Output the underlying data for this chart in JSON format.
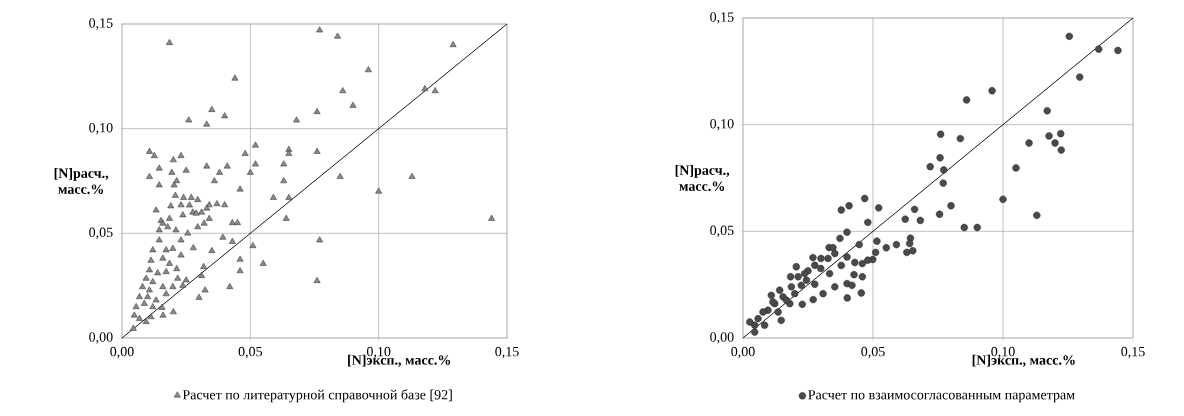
{
  "chart_data": [
    {
      "type": "scatter",
      "xlabel": "[N]эксп., масс.%",
      "ylabel": "[N]расч., масс.%",
      "xlim": [
        0,
        0.15
      ],
      "ylim": [
        0,
        0.15
      ],
      "xticks": [
        {
          "value": 0,
          "label": "0,00"
        },
        {
          "value": 0.05,
          "label": "0,05"
        },
        {
          "value": 0.1,
          "label": "0,10"
        },
        {
          "value": 0.15,
          "label": "0,15"
        }
      ],
      "yticks": [
        {
          "value": 0,
          "label": "0,00"
        },
        {
          "value": 0.05,
          "label": "0,05"
        },
        {
          "value": 0.1,
          "label": "0,10"
        },
        {
          "value": 0.15,
          "label": "0,15"
        }
      ],
      "grid": true,
      "legend": "bottom",
      "marker": "triangle",
      "series": [
        {
          "name": "Расчет по литературной справочной базе [92]",
          "color": "#8a8a8a",
          "x": [
            0.0185,
            0.077,
            0.084,
            0.129,
            0.096,
            0.044,
            0.086,
            0.118,
            0.122,
            0.09,
            0.035,
            0.04,
            0.026,
            0.033,
            0.068,
            0.076,
            0.052,
            0.0107,
            0.0126,
            0.02,
            0.023,
            0.048,
            0.065,
            0.065,
            0.076,
            0.0145,
            0.025,
            0.033,
            0.041,
            0.052,
            0.063,
            0.0107,
            0.0194,
            0.038,
            0.05,
            0.0145,
            0.0213,
            0.0203,
            0.036,
            0.063,
            0.085,
            0.113,
            0.046,
            0.1,
            0.059,
            0.065,
            0.0208,
            0.024,
            0.027,
            0.0295,
            0.019,
            0.023,
            0.034,
            0.037,
            0.04,
            0.0276,
            0.031,
            0.0152,
            0.0185,
            0.0237,
            0.034,
            0.043,
            0.045,
            0.064,
            0.144,
            0.0295,
            0.032,
            0.0145,
            0.0178,
            0.021,
            0.0256,
            0.0393,
            0.043,
            0.077,
            0.023,
            0.0145,
            0.0278,
            0.035,
            0.051,
            0.012,
            0.0172,
            0.0198,
            0.023,
            0.046,
            0.055,
            0.0113,
            0.0159,
            0.0185,
            0.0213,
            0.0318,
            0.046,
            0.0107,
            0.0139,
            0.0172,
            0.031,
            0.0094,
            0.012,
            0.0217,
            0.025,
            0.076,
            0.042,
            0.008,
            0.0107,
            0.0159,
            0.0198,
            0.0237,
            0.0324,
            0.03,
            0.0068,
            0.01,
            0.0133,
            0.0172,
            0.0055,
            0.0087,
            0.012,
            0.0156,
            0.02,
            0.016,
            0.0048,
            0.0068,
            0.0094,
            0.0113,
            0.0044,
            0.0133,
            0.0159,
            0.0263,
            0.0289,
            0.033
          ],
          "values": [
            0.141,
            0.147,
            0.144,
            0.14,
            0.128,
            0.124,
            0.118,
            0.119,
            0.118,
            0.111,
            0.109,
            0.106,
            0.104,
            0.102,
            0.104,
            0.108,
            0.092,
            0.089,
            0.087,
            0.085,
            0.087,
            0.088,
            0.09,
            0.088,
            0.089,
            0.081,
            0.08,
            0.082,
            0.082,
            0.083,
            0.083,
            0.077,
            0.079,
            0.079,
            0.079,
            0.073,
            0.075,
            0.073,
            0.075,
            0.075,
            0.077,
            0.077,
            0.071,
            0.07,
            0.067,
            0.067,
            0.068,
            0.067,
            0.067,
            0.066,
            0.063,
            0.0635,
            0.0635,
            0.064,
            0.0635,
            0.06,
            0.06,
            0.056,
            0.057,
            0.0587,
            0.057,
            0.055,
            0.055,
            0.057,
            0.057,
            0.053,
            0.0547,
            0.0515,
            0.053,
            0.0515,
            0.05,
            0.048,
            0.046,
            0.0467,
            0.0467,
            0.0467,
            0.043,
            0.0416,
            0.044,
            0.042,
            0.042,
            0.0427,
            0.0395,
            0.0375,
            0.0355,
            0.037,
            0.038,
            0.0355,
            0.033,
            0.034,
            0.032,
            0.0324,
            0.031,
            0.0316,
            0.0297,
            0.0284,
            0.0268,
            0.0284,
            0.0276,
            0.0273,
            0.0244,
            0.0244,
            0.0228,
            0.0244,
            0.0244,
            0.025,
            0.0228,
            0.0193,
            0.0196,
            0.0196,
            0.018,
            0.021,
            0.0148,
            0.0164,
            0.0148,
            0.0145,
            0.0124,
            0.0108,
            0.0108,
            0.0092,
            0.0077,
            0.01,
            0.0045,
            0.061,
            0.0547,
            0.0634,
            0.0595,
            0.0619
          ]
        },
        {
          "type": "line",
          "color": "#000000",
          "marker": "none",
          "x": [
            0,
            0.15
          ],
          "values": [
            0,
            0.15
          ]
        }
      ]
    },
    {
      "type": "scatter",
      "xlabel": "[N]эксп., масс.%",
      "ylabel": "[N]расч., масс.%",
      "xlim": [
        0,
        0.15
      ],
      "ylim": [
        0,
        0.15
      ],
      "xticks": [
        {
          "value": 0,
          "label": "0,00"
        },
        {
          "value": 0.05,
          "label": "0,05"
        },
        {
          "value": 0.1,
          "label": "0,10"
        },
        {
          "value": 0.15,
          "label": "0,15"
        }
      ],
      "yticks": [
        {
          "value": 0,
          "label": "0,00"
        },
        {
          "value": 0.05,
          "label": "0,05"
        },
        {
          "value": 0.1,
          "label": "0,10"
        },
        {
          "value": 0.15,
          "label": "0,15"
        }
      ],
      "grid": true,
      "legend": "bottom",
      "marker": "circle",
      "series": [
        {
          "name": "Расчет по взаимосогласованным параметрам",
          "color": "#4a4a4a",
          "x": [
            0.1255,
            0.1368,
            0.1442,
            0.1295,
            0.0958,
            0.086,
            0.117,
            0.076,
            0.0836,
            0.1177,
            0.1222,
            0.11,
            0.12,
            0.1224,
            0.0758,
            0.072,
            0.0772,
            0.105,
            0.077,
            0.1,
            0.0468,
            0.0378,
            0.0408,
            0.0522,
            0.08,
            0.0756,
            0.113,
            0.066,
            0.0624,
            0.0682,
            0.048,
            0.0851,
            0.0901,
            0.04,
            0.0373,
            0.0515,
            0.0447,
            0.0551,
            0.059,
            0.0644,
            0.0641,
            0.063,
            0.0653,
            0.0331,
            0.0346,
            0.051,
            0.0499,
            0.048,
            0.04,
            0.0353,
            0.0378,
            0.043,
            0.0459,
            0.0269,
            0.03,
            0.0327,
            0.025,
            0.0276,
            0.0299,
            0.0333,
            0.0205,
            0.0183,
            0.0427,
            0.0459,
            0.04,
            0.0419,
            0.0353,
            0.0308,
            0.0401,
            0.0455,
            0.027,
            0.0244,
            0.0224,
            0.0276,
            0.0199,
            0.0228,
            0.018,
            0.0141,
            0.0154,
            0.0167,
            0.0109,
            0.0122,
            0.0096,
            0.0135,
            0.0147,
            0.0077,
            0.0058,
            0.0083,
            0.0045,
            0.0026,
            0.0045,
            0.0115,
            0.0186,
            0.0212,
            0.0237
          ],
          "values": [
            0.1414,
            0.1354,
            0.1348,
            0.1223,
            0.1159,
            0.1116,
            0.1065,
            0.0955,
            0.0935,
            0.0947,
            0.0958,
            0.0914,
            0.0914,
            0.0881,
            0.0845,
            0.0803,
            0.0788,
            0.0797,
            0.0726,
            0.065,
            0.0654,
            0.06,
            0.062,
            0.061,
            0.062,
            0.058,
            0.0575,
            0.0603,
            0.0557,
            0.0551,
            0.0542,
            0.0518,
            0.0518,
            0.0496,
            0.0467,
            0.0454,
            0.0438,
            0.0423,
            0.0438,
            0.0468,
            0.0443,
            0.0401,
            0.0409,
            0.0424,
            0.0424,
            0.0401,
            0.0368,
            0.0365,
            0.038,
            0.0396,
            0.034,
            0.0354,
            0.0349,
            0.0377,
            0.0373,
            0.0373,
            0.0315,
            0.0341,
            0.0326,
            0.0302,
            0.0334,
            0.0287,
            0.0297,
            0.0287,
            0.0255,
            0.0247,
            0.024,
            0.0208,
            0.0188,
            0.0211,
            0.018,
            0.0271,
            0.0247,
            0.0252,
            0.0208,
            0.0158,
            0.0161,
            0.0224,
            0.0193,
            0.0177,
            0.02,
            0.0161,
            0.013,
            0.0122,
            0.0083,
            0.0122,
            0.0091,
            0.006,
            0.006,
            0.0075,
            0.0028,
            0.0169,
            0.024,
            0.0287,
            0.0302
          ]
        },
        {
          "type": "line",
          "color": "#000000",
          "marker": "none",
          "x": [
            0,
            0.15
          ],
          "values": [
            0,
            0.15
          ]
        }
      ]
    }
  ]
}
